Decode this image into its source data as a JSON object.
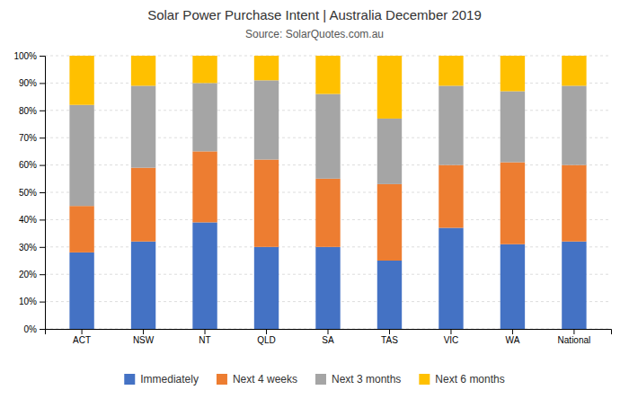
{
  "chart_data": {
    "type": "bar",
    "title": "Solar Power Purchase Intent | Australia December 2019",
    "subtitle": "Source: SolarQuotes.com.au",
    "categories": [
      "ACT",
      "NSW",
      "NT",
      "QLD",
      "SA",
      "TAS",
      "VIC",
      "WA",
      "National"
    ],
    "series": [
      {
        "name": "Immediately",
        "color": "#4472C4",
        "values": [
          28,
          32,
          39,
          30,
          30,
          25,
          37,
          31,
          32
        ]
      },
      {
        "name": "Next 4 weeks",
        "color": "#ED7D31",
        "values": [
          17,
          27,
          26,
          32,
          25,
          28,
          23,
          30,
          28
        ]
      },
      {
        "name": "Next 3 months",
        "color": "#A5A5A5",
        "values": [
          37,
          30,
          25,
          29,
          31,
          24,
          29,
          26,
          29
        ]
      },
      {
        "name": "Next 6 months",
        "color": "#FFC000",
        "values": [
          18,
          11,
          10,
          9,
          14,
          23,
          11,
          13,
          11
        ]
      }
    ],
    "stacked": true,
    "ylim": [
      0,
      100
    ],
    "yticks": [
      {
        "value": 0,
        "label": "0%"
      },
      {
        "value": 10,
        "label": "10%"
      },
      {
        "value": 20,
        "label": "20%"
      },
      {
        "value": 30,
        "label": "30%"
      },
      {
        "value": 40,
        "label": "40%"
      },
      {
        "value": 50,
        "label": "50%"
      },
      {
        "value": 60,
        "label": "60%"
      },
      {
        "value": 70,
        "label": "70%"
      },
      {
        "value": 80,
        "label": "80%"
      },
      {
        "value": 90,
        "label": "90%"
      },
      {
        "value": 100,
        "label": "100%"
      }
    ],
    "grid": true,
    "legend": "bottom"
  }
}
